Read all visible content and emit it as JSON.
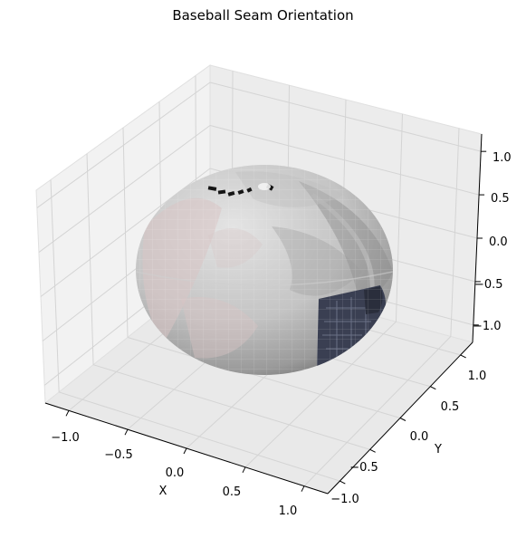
{
  "chart_data": {
    "type": "surface3d",
    "title": "Baseball Seam Orientation",
    "xlabel": "X",
    "ylabel": "Y",
    "zlabel": "",
    "xlim": [
      -1.2,
      1.2
    ],
    "ylim": [
      -1.2,
      1.2
    ],
    "zlim": [
      -1.2,
      1.2
    ],
    "x_ticks": [
      "−1.0",
      "−0.5",
      "0.0",
      "0.5",
      "1.0"
    ],
    "y_ticks": [
      "−1.0",
      "−0.5",
      "0.0",
      "0.5",
      "1.0"
    ],
    "z_ticks": [
      "−1.0",
      "−0.5",
      "0.0",
      "0.5",
      "1.0"
    ],
    "surface": {
      "shape": "sphere",
      "radius": 1.0,
      "center": [
        0,
        0,
        0
      ]
    },
    "grid": true,
    "colors": {
      "pane": "#f2f2f2",
      "pane_dark": "#e9e9e9",
      "grid": "#d4d4d4",
      "ball_light": "#dcdcdc",
      "ball_dark": "#7d7d7d",
      "seam_tint": "#d6c6c6",
      "dark_patch": "#3a3f52"
    }
  }
}
